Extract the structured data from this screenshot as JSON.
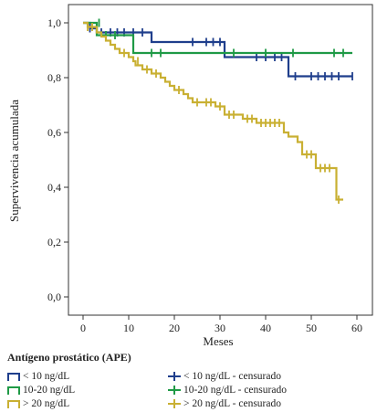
{
  "chart_data": {
    "type": "line",
    "subtype": "kaplan-meier step",
    "title": "",
    "xlabel": "Meses",
    "ylabel": "Supervivencia acumulada",
    "xlim": [
      0,
      60
    ],
    "ylim": [
      0,
      1.0
    ],
    "x_ticks": [
      "0",
      "10",
      "20",
      "30",
      "40",
      "50",
      "60"
    ],
    "y_ticks": [
      "0,0",
      "0,2",
      "0,4",
      "0,6",
      "0,8",
      "1,0"
    ],
    "grid": false,
    "legend_position": "bottom",
    "series": [
      {
        "name": "< 10 ng/dL",
        "color": "#1f3e8c",
        "steps": [
          [
            0,
            1.0
          ],
          [
            1.5,
            0.98
          ],
          [
            3,
            0.965
          ],
          [
            15,
            0.93
          ],
          [
            31,
            0.875
          ],
          [
            45,
            0.805
          ],
          [
            59,
            0.805
          ]
        ],
        "censored": [
          [
            1.5,
            0.98
          ],
          [
            4,
            0.965
          ],
          [
            6,
            0.965
          ],
          [
            7.5,
            0.965
          ],
          [
            9,
            0.965
          ],
          [
            11,
            0.965
          ],
          [
            13,
            0.965
          ],
          [
            24,
            0.93
          ],
          [
            27,
            0.93
          ],
          [
            28.5,
            0.93
          ],
          [
            30,
            0.93
          ],
          [
            38,
            0.875
          ],
          [
            40,
            0.875
          ],
          [
            42,
            0.875
          ],
          [
            43.5,
            0.875
          ],
          [
            46.5,
            0.805
          ],
          [
            50,
            0.805
          ],
          [
            51.5,
            0.805
          ],
          [
            53,
            0.805
          ],
          [
            54.5,
            0.805
          ],
          [
            56,
            0.805
          ],
          [
            59,
            0.805
          ]
        ]
      },
      {
        "name": "10-20 ng/dL",
        "color": "#1f9a46",
        "steps": [
          [
            0,
            1.0
          ],
          [
            3,
            0.955
          ],
          [
            11,
            0.89
          ],
          [
            59,
            0.89
          ]
        ],
        "censored": [
          [
            3.5,
            1.0
          ],
          [
            5,
            0.955
          ],
          [
            7,
            0.955
          ],
          [
            15,
            0.89
          ],
          [
            17,
            0.89
          ],
          [
            33,
            0.89
          ],
          [
            40,
            0.89
          ],
          [
            46,
            0.89
          ],
          [
            55,
            0.89
          ],
          [
            57,
            0.89
          ]
        ]
      },
      {
        "name": "> 20 ng/dL",
        "color": "#c9b033",
        "steps": [
          [
            0,
            1.0
          ],
          [
            1,
            0.985
          ],
          [
            3,
            0.965
          ],
          [
            4,
            0.95
          ],
          [
            5,
            0.935
          ],
          [
            6,
            0.92
          ],
          [
            7,
            0.905
          ],
          [
            8,
            0.89
          ],
          [
            10,
            0.875
          ],
          [
            11,
            0.86
          ],
          [
            11.5,
            0.845
          ],
          [
            13,
            0.83
          ],
          [
            15,
            0.815
          ],
          [
            17,
            0.8
          ],
          [
            18,
            0.785
          ],
          [
            19,
            0.77
          ],
          [
            20,
            0.755
          ],
          [
            22,
            0.74
          ],
          [
            23,
            0.725
          ],
          [
            24,
            0.71
          ],
          [
            29,
            0.695
          ],
          [
            31,
            0.665
          ],
          [
            35,
            0.65
          ],
          [
            38,
            0.635
          ],
          [
            44,
            0.6
          ],
          [
            45,
            0.585
          ],
          [
            47,
            0.565
          ],
          [
            48,
            0.52
          ],
          [
            51,
            0.47
          ],
          [
            55.5,
            0.355
          ],
          [
            57,
            0.355
          ]
        ],
        "censored": [
          [
            1,
            0.985
          ],
          [
            2,
            0.985
          ],
          [
            9,
            0.89
          ],
          [
            12,
            0.86
          ],
          [
            14,
            0.83
          ],
          [
            16,
            0.815
          ],
          [
            21,
            0.755
          ],
          [
            25,
            0.71
          ],
          [
            27,
            0.71
          ],
          [
            28,
            0.71
          ],
          [
            30,
            0.695
          ],
          [
            32,
            0.665
          ],
          [
            33,
            0.665
          ],
          [
            36,
            0.65
          ],
          [
            37,
            0.65
          ],
          [
            39,
            0.635
          ],
          [
            40,
            0.635
          ],
          [
            41,
            0.635
          ],
          [
            42,
            0.635
          ],
          [
            43,
            0.635
          ],
          [
            49,
            0.52
          ],
          [
            50,
            0.52
          ],
          [
            52,
            0.47
          ],
          [
            53,
            0.47
          ],
          [
            54,
            0.47
          ],
          [
            56,
            0.355
          ]
        ]
      }
    ]
  },
  "legend": {
    "title": "Antígeno prostático (APE)",
    "items": [
      {
        "label": "< 10 ng/dL",
        "color": "#1f3e8c"
      },
      {
        "label": "10-20 ng/dL",
        "color": "#1f9a46"
      },
      {
        "label": "> 20 ng/dL",
        "color": "#c9b033"
      }
    ],
    "censored_items": [
      {
        "label": "< 10 ng/dL - censurado",
        "color": "#1f3e8c"
      },
      {
        "label": "10-20 ng/dL - censurado",
        "color": "#1f9a46"
      },
      {
        "label": "> 20 ng/dL - censurado",
        "color": "#c9b033"
      }
    ]
  }
}
